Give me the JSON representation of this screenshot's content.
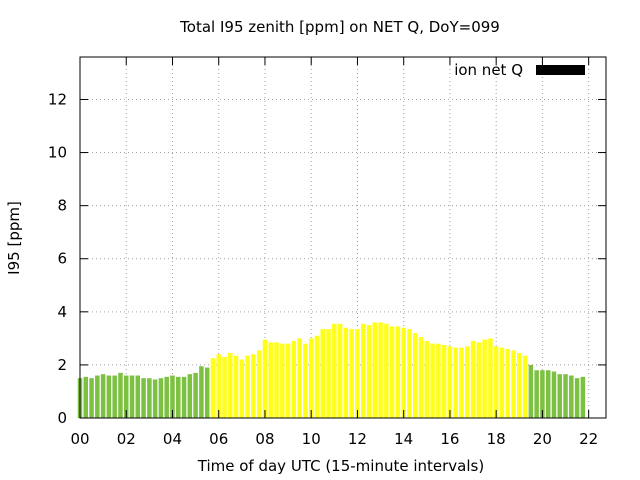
{
  "chart_data": {
    "type": "bar",
    "title": "Total I95 zenith [ppm] on NET Q, DoY=099",
    "xlabel": "Time of day UTC (15-minute intervals)",
    "ylabel": "I95 [ppm]",
    "ylim": [
      0,
      13.6
    ],
    "yticks": [
      0,
      2,
      4,
      6,
      8,
      10,
      12
    ],
    "xlim": [
      0,
      22.75
    ],
    "xticks": [
      "00",
      "02",
      "04",
      "06",
      "08",
      "10",
      "12",
      "14",
      "16",
      "18",
      "20",
      "22"
    ],
    "grid": true,
    "interval_hours": 0.25,
    "legend": {
      "label": "ion net Q",
      "color": "#000000",
      "position": "top-right"
    },
    "colors": {
      "green": "#7dc142",
      "yellow": "#ffff1a"
    },
    "series": [
      {
        "values": [
          1.5,
          1.55,
          1.5,
          1.6,
          1.65,
          1.6,
          1.6,
          1.7,
          1.6,
          1.6,
          1.6,
          1.5,
          1.5,
          1.45,
          1.5,
          1.55,
          1.6,
          1.55,
          1.55,
          1.65,
          1.7,
          1.95,
          1.9,
          2.25,
          2.4,
          2.3,
          2.45,
          2.35,
          2.2,
          2.35,
          2.4,
          2.55,
          2.95,
          2.85,
          2.85,
          2.8,
          2.8,
          2.9,
          3.0,
          2.8,
          3.0,
          3.1,
          3.35,
          3.35,
          3.55,
          3.55,
          3.4,
          3.35,
          3.35,
          3.55,
          3.5,
          3.6,
          3.6,
          3.55,
          3.45,
          3.45,
          3.4,
          3.35,
          3.2,
          3.05,
          2.9,
          2.8,
          2.8,
          2.75,
          2.7,
          2.65,
          2.65,
          2.7,
          2.9,
          2.85,
          2.95,
          3.0,
          2.7,
          2.65,
          2.6,
          2.55,
          2.45,
          2.35,
          2.0,
          1.8,
          1.8,
          1.8,
          1.75,
          1.65,
          1.65,
          1.6,
          1.5,
          1.55
        ],
        "colors": [
          "green",
          "green",
          "green",
          "green",
          "green",
          "green",
          "green",
          "green",
          "green",
          "green",
          "green",
          "green",
          "green",
          "green",
          "green",
          "green",
          "green",
          "green",
          "green",
          "green",
          "green",
          "green",
          "green",
          "yellow",
          "yellow",
          "yellow",
          "yellow",
          "yellow",
          "yellow",
          "yellow",
          "yellow",
          "yellow",
          "yellow",
          "yellow",
          "yellow",
          "yellow",
          "yellow",
          "yellow",
          "yellow",
          "yellow",
          "yellow",
          "yellow",
          "yellow",
          "yellow",
          "yellow",
          "yellow",
          "yellow",
          "yellow",
          "yellow",
          "yellow",
          "yellow",
          "yellow",
          "yellow",
          "yellow",
          "yellow",
          "yellow",
          "yellow",
          "yellow",
          "yellow",
          "yellow",
          "yellow",
          "yellow",
          "yellow",
          "yellow",
          "yellow",
          "yellow",
          "yellow",
          "yellow",
          "yellow",
          "yellow",
          "yellow",
          "yellow",
          "yellow",
          "yellow",
          "yellow",
          "yellow",
          "yellow",
          "yellow",
          "green",
          "green",
          "green",
          "green",
          "green",
          "green",
          "green",
          "green",
          "green",
          "green"
        ]
      }
    ]
  }
}
